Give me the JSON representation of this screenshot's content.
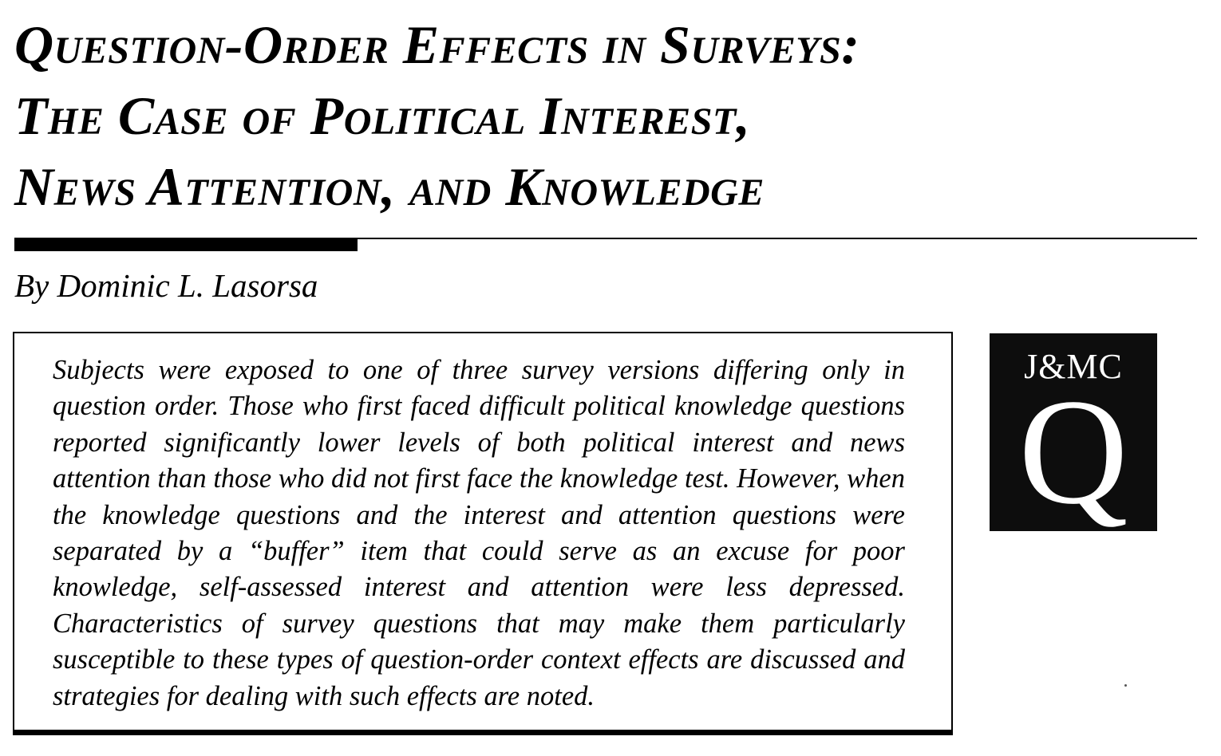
{
  "article": {
    "title_lines": [
      "Question-Order Effects in Surveys:",
      "The Case of Political Interest,",
      "News Attention, and Knowledge"
    ],
    "byline": "By Dominic L. Lasorsa",
    "abstract": "Subjects were exposed to one of three survey versions differing only in question order.  Those who first faced difficult political knowledge questions reported significantly lower levels of both political interest and news attention than those who did not first face the knowledge test. However, when the knowledge questions and the interest and attention questions were separated by a “buffer” item that could serve as an excuse for poor knowledge, self-assessed interest and attention were less de­pressed.  Characteristics of survey questions that may make them particularly susceptible to these types of question-order context effects are discussed and strategies for dealing with such effects are noted."
  },
  "logo": {
    "abbr": "J&MC",
    "letter": "Q",
    "background": "#0d0d0d",
    "foreground": "#ffffff"
  }
}
